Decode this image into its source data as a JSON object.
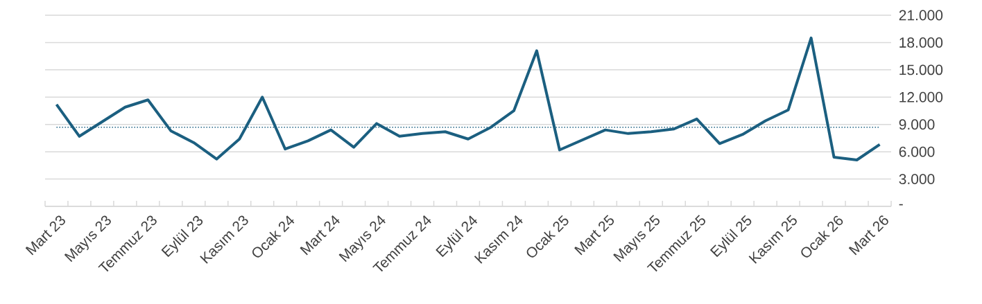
{
  "chart_data": {
    "type": "line",
    "categories": [
      "Mart 23",
      null,
      "Mayıs 23",
      null,
      "Temmuz 23",
      null,
      "Eylül 23",
      null,
      "Kasım 23",
      null,
      "Ocak 24",
      null,
      "Mart 24",
      null,
      "Mayıs 24",
      null,
      "Temmuz 24",
      null,
      "Eylül 24",
      null,
      "Kasım 24",
      null,
      "Ocak 25",
      null,
      "Mart 25",
      null,
      "Mayıs 25",
      null,
      "Temmuz 25",
      null,
      "Eylül 25",
      null,
      "Kasım 25",
      null,
      "Ocak 26",
      null,
      "Mart 26"
    ],
    "values": [
      11200,
      7700,
      9300,
      10900,
      11700,
      8300,
      7000,
      5200,
      7400,
      12000,
      6300,
      7200,
      8400,
      6500,
      9100,
      7700,
      8000,
      8200,
      7400,
      8700,
      10500,
      17100,
      6200,
      7300,
      8400,
      8000,
      8200,
      8500,
      9600,
      6900,
      7900,
      9400,
      10600,
      18500,
      5400,
      5100,
      6800
    ],
    "color": "#1b5f80",
    "ylim": [
      0,
      21000
    ],
    "yticks": [
      {
        "value": 0,
        "label": "-"
      },
      {
        "value": 3000,
        "label": "3.000"
      },
      {
        "value": 6000,
        "label": "6.000"
      },
      {
        "value": 9000,
        "label": "9.000"
      },
      {
        "value": 12000,
        "label": "12.000"
      },
      {
        "value": 15000,
        "label": "15.000"
      },
      {
        "value": 18000,
        "label": "18.000"
      },
      {
        "value": 21000,
        "label": "21.000"
      }
    ],
    "grid": "y",
    "ref_lines": [
      {
        "axis": "y",
        "value": 8700,
        "color": "#1b5f80",
        "line_style": "dotted"
      }
    ]
  }
}
